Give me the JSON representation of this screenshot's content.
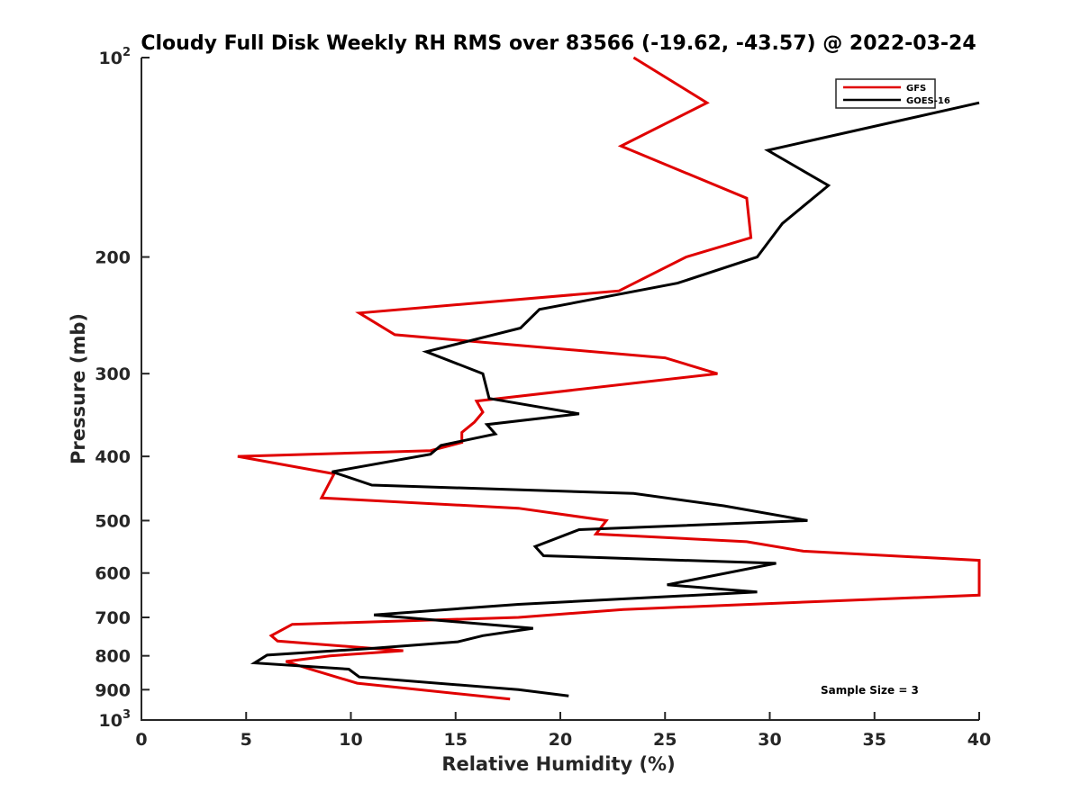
{
  "chart_data": {
    "type": "line",
    "title": "Cloudy Full Disk Weekly RH RMS over 83566 (-19.62, -43.57) @ 2022-03-24",
    "xlabel": "Relative Humidity (%)",
    "ylabel": "Pressure (mb)",
    "xlim": [
      0,
      40
    ],
    "ylim": [
      100,
      1000
    ],
    "y_scale": "log",
    "y_reversed": true,
    "x_ticks": [
      "0",
      "5",
      "10",
      "15",
      "20",
      "25",
      "30",
      "35",
      "40"
    ],
    "y_ticks": [
      {
        "value": 100,
        "base": "10",
        "exp": "2"
      },
      {
        "value": 200,
        "base": "200",
        "exp": ""
      },
      {
        "value": 300,
        "base": "300",
        "exp": ""
      },
      {
        "value": 400,
        "base": "400",
        "exp": ""
      },
      {
        "value": 500,
        "base": "500",
        "exp": ""
      },
      {
        "value": 600,
        "base": "600",
        "exp": ""
      },
      {
        "value": 700,
        "base": "700",
        "exp": ""
      },
      {
        "value": 800,
        "base": "800",
        "exp": ""
      },
      {
        "value": 900,
        "base": "900",
        "exp": ""
      },
      {
        "value": 1000,
        "base": "10",
        "exp": "3"
      }
    ],
    "grid": false,
    "legend": "top-right",
    "annotation": "Sample Size = 3",
    "series": [
      {
        "name": "GFS",
        "color": "#e00000",
        "points": [
          [
            23.5,
            100
          ],
          [
            27.0,
            117
          ],
          [
            22.9,
            136
          ],
          [
            28.9,
            163
          ],
          [
            29.1,
            187
          ],
          [
            26.0,
            200
          ],
          [
            22.8,
            225
          ],
          [
            10.4,
            243
          ],
          [
            12.1,
            262
          ],
          [
            25.0,
            284
          ],
          [
            27.5,
            300
          ],
          [
            16.0,
            330
          ],
          [
            16.3,
            343
          ],
          [
            15.9,
            355
          ],
          [
            15.3,
            368
          ],
          [
            15.3,
            381
          ],
          [
            13.8,
            392
          ],
          [
            4.6,
            400
          ],
          [
            9.2,
            425
          ],
          [
            8.6,
            462
          ],
          [
            18.0,
            479
          ],
          [
            22.2,
            500
          ],
          [
            21.7,
            524
          ],
          [
            28.9,
            538
          ],
          [
            31.6,
            556
          ],
          [
            40.0,
            574
          ],
          [
            40.0,
            648
          ],
          [
            33.0,
            661
          ],
          [
            23.0,
            681
          ],
          [
            18.0,
            700
          ],
          [
            7.2,
            717
          ],
          [
            6.2,
            746
          ],
          [
            6.5,
            760
          ],
          [
            12.5,
            786
          ],
          [
            9.0,
            800
          ],
          [
            6.9,
            816
          ],
          [
            8.0,
            837
          ],
          [
            10.3,
            880
          ],
          [
            17.6,
            930
          ]
        ]
      },
      {
        "name": "GOES-16",
        "color": "#000000",
        "points": [
          [
            40.0,
            117
          ],
          [
            29.9,
            138
          ],
          [
            32.8,
            156
          ],
          [
            30.6,
            178
          ],
          [
            29.4,
            200
          ],
          [
            25.6,
            219
          ],
          [
            19.0,
            240
          ],
          [
            18.1,
            256
          ],
          [
            13.6,
            278
          ],
          [
            16.3,
            300
          ],
          [
            16.6,
            327
          ],
          [
            20.9,
            345
          ],
          [
            16.5,
            358
          ],
          [
            16.9,
            370
          ],
          [
            14.3,
            385
          ],
          [
            13.8,
            397
          ],
          [
            9.1,
            422
          ],
          [
            11.0,
            442
          ],
          [
            23.5,
            455
          ],
          [
            27.8,
            475
          ],
          [
            31.8,
            500
          ],
          [
            20.9,
            516
          ],
          [
            18.8,
            547
          ],
          [
            19.2,
            565
          ],
          [
            30.3,
            580
          ],
          [
            27.0,
            608
          ],
          [
            25.1,
            625
          ],
          [
            29.4,
            641
          ],
          [
            18.0,
            669
          ],
          [
            11.1,
            694
          ],
          [
            18.7,
            727
          ],
          [
            16.3,
            746
          ],
          [
            15.1,
            762
          ],
          [
            10.9,
            780
          ],
          [
            6.0,
            798
          ],
          [
            5.4,
            820
          ],
          [
            9.9,
            838
          ],
          [
            10.4,
            861
          ],
          [
            18.0,
            900
          ],
          [
            20.4,
            920
          ]
        ]
      }
    ]
  }
}
